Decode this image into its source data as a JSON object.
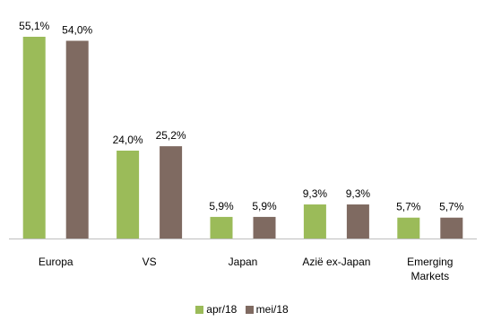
{
  "chart_data": {
    "type": "bar",
    "categories": [
      "Europa",
      "VS",
      "Japan",
      "Azië ex-Japan",
      "Emerging Markets"
    ],
    "series": [
      {
        "name": "apr/18",
        "values": [
          55.1,
          24.0,
          5.9,
          9.3,
          5.7
        ],
        "labels": [
          "55,1%",
          "24,0%",
          "5,9%",
          "9,3%",
          "5,7%"
        ],
        "color": "#9bbb59"
      },
      {
        "name": "mei/18",
        "values": [
          54.0,
          25.2,
          5.9,
          9.3,
          5.7
        ],
        "labels": [
          "54,0%",
          "25,2%",
          "5,9%",
          "9,3%",
          "5,7%"
        ],
        "color": "#7f6a61"
      }
    ],
    "category_lines": [
      [
        "Europa"
      ],
      [
        "VS"
      ],
      [
        "Japan"
      ],
      [
        "Azië ex-Japan"
      ],
      [
        "Emerging",
        "Markets"
      ]
    ],
    "ylim": [
      0,
      55.1
    ],
    "grid": false,
    "legend_position": "bottom"
  }
}
